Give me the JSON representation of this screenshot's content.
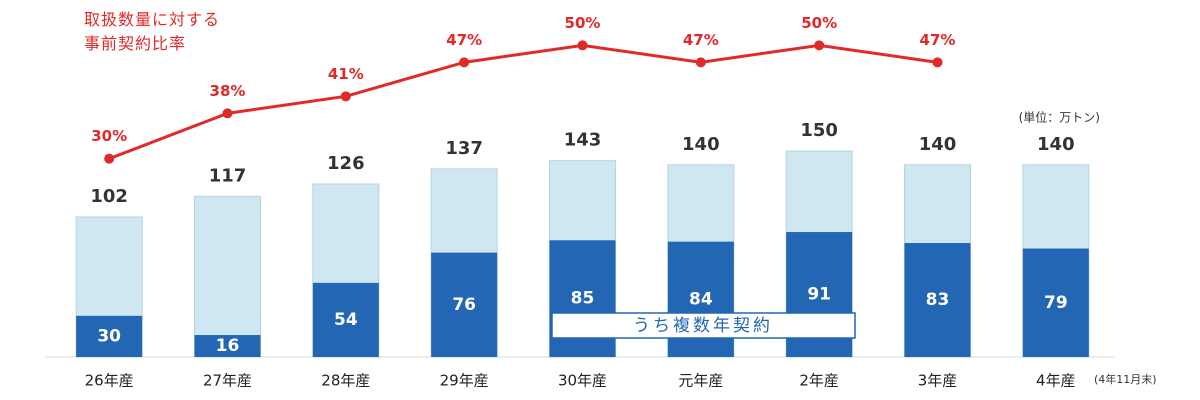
{
  "chart_data": {
    "type": "bar",
    "categories": [
      "26年産",
      "27年産",
      "28年産",
      "29年産",
      "30年産",
      "元年産",
      "2年産",
      "3年産",
      "4年産"
    ],
    "series": [
      {
        "color": "#cfe7f0",
        "values": [
          102,
          117,
          126,
          137,
          143,
          140,
          150,
          140,
          140
        ]
      },
      {
        "name": "うち複数年契約",
        "color": "#2366b3",
        "values": [
          30,
          16,
          54,
          76,
          85,
          84,
          91,
          83,
          79
        ]
      },
      {
        "name": "取扱数量に対する\n事前契約比率",
        "type": "line",
        "axis": "y2",
        "color": "#e02a2a",
        "values": [
          30,
          38,
          41,
          47,
          50,
          47,
          50,
          47,
          null
        ],
        "value_labels": [
          "30%",
          "38%",
          "41%",
          "47%",
          "50%",
          "47%",
          "50%",
          "47%",
          null
        ]
      }
    ],
    "ylim": [
      0,
      260
    ],
    "y2lim": [
      -5,
      58
    ],
    "annotations": [
      "(単位：万トン)",
      "(4年11月末)"
    ]
  }
}
